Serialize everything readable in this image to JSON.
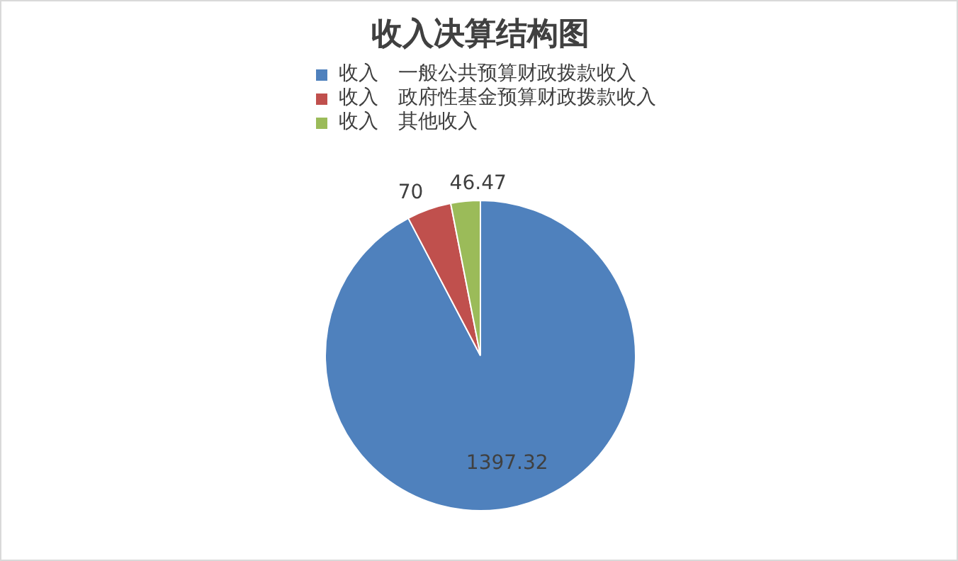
{
  "chart_data": {
    "type": "pie",
    "title": "收入决算结构图",
    "categories": [
      "收入　一般公共预算财政拨款收入",
      "收入　政府性基金预算财政拨款收入",
      "收入　其他收入"
    ],
    "values": [
      1397.32,
      70,
      46.47
    ],
    "colors": [
      "#4f81bd",
      "#c0504d",
      "#9bbb59"
    ],
    "legend": "top",
    "data_labels": true
  }
}
